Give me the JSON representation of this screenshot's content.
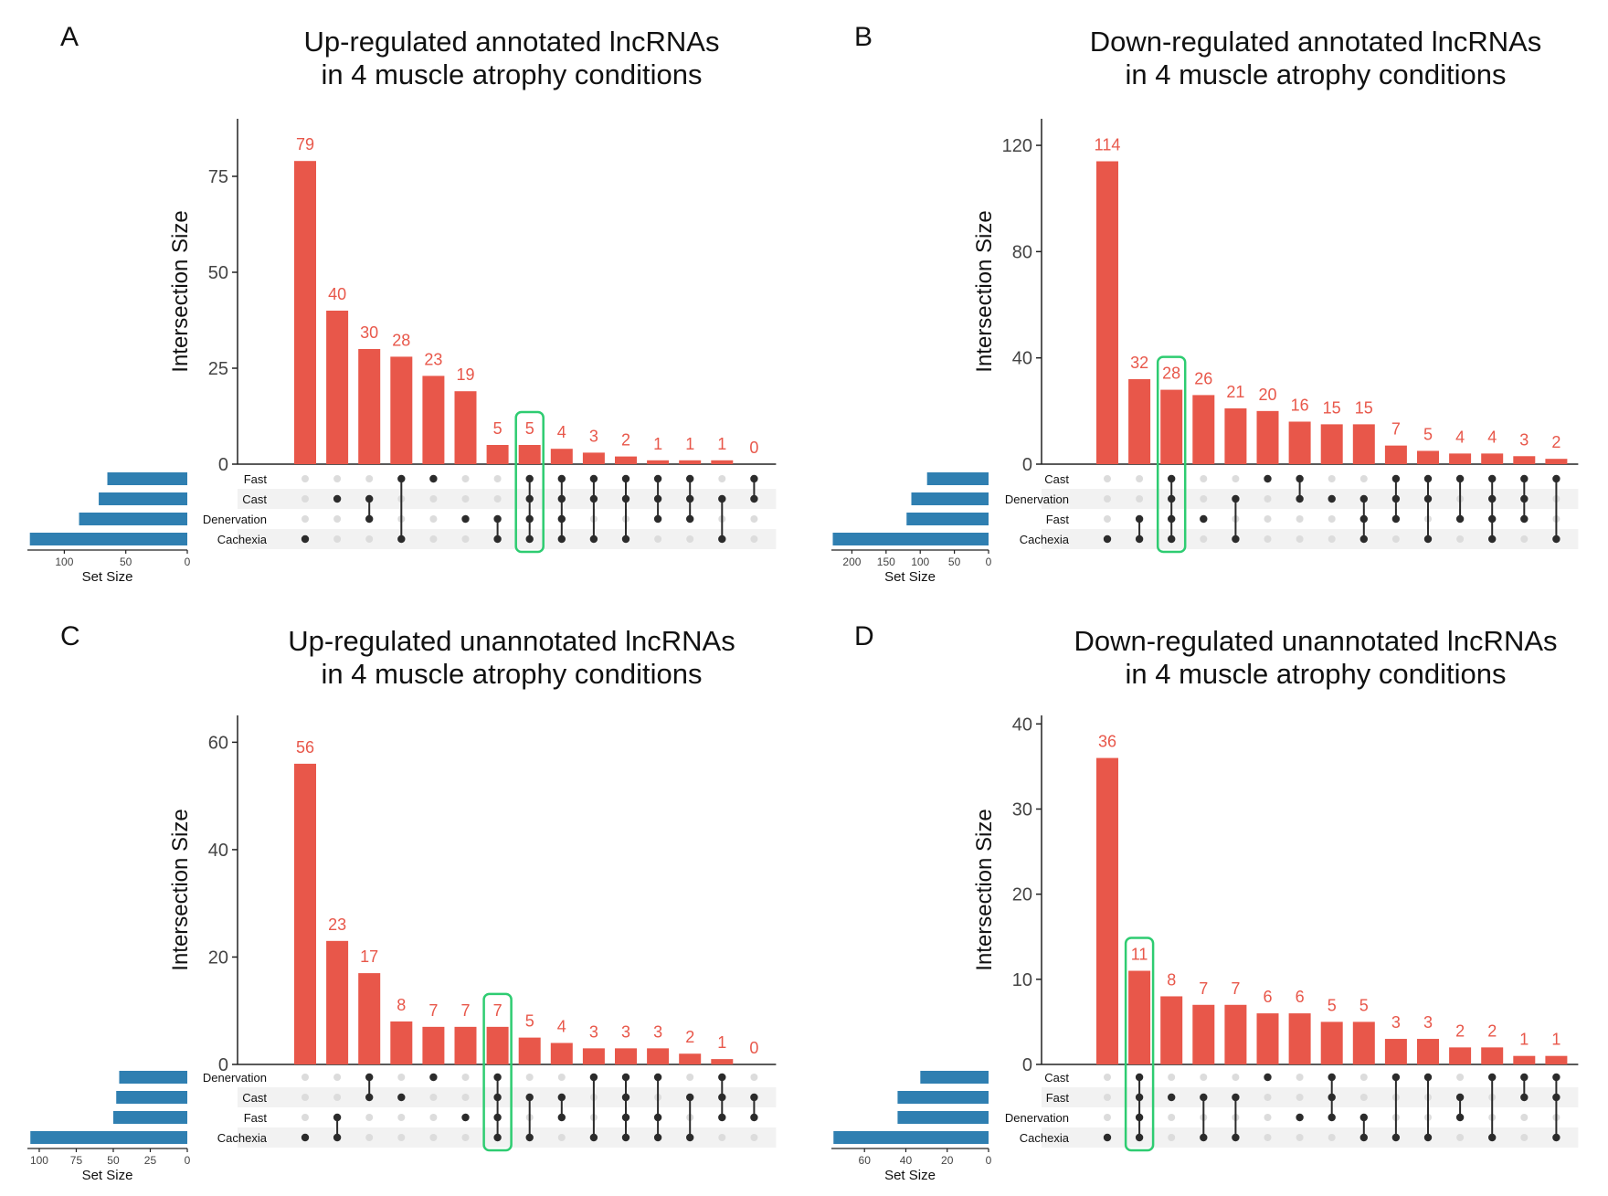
{
  "colors": {
    "bar": "#e8574a",
    "set_bar": "#2f7fb1",
    "highlight": "#2ecc71",
    "dot_on": "#2b2b2b",
    "dot_off": "#dcdcdc",
    "stripe": "#f2f2f2",
    "label": "#e8574a"
  },
  "chart_data": [
    {
      "panel": "A",
      "type": "bar",
      "title_lines": [
        "Up-regulated annotated lncRNAs",
        "in 4 muscle atrophy conditions"
      ],
      "ylabel": "Intersection Size",
      "ylim": [
        0,
        90
      ],
      "yticks": [
        0,
        25,
        50,
        75
      ],
      "values": [
        79,
        40,
        30,
        28,
        23,
        19,
        5,
        5,
        4,
        3,
        2,
        1,
        1,
        1,
        0
      ],
      "sets": [
        "Fast",
        "Cast",
        "Denervation",
        "Cachexia"
      ],
      "set_sizes": [
        65,
        72,
        88,
        128
      ],
      "set_size_max": 130,
      "set_ticks": [
        100,
        50,
        0
      ],
      "set_xlabel": "Set Size",
      "membership": [
        [
          3
        ],
        [
          1
        ],
        [
          1,
          2
        ],
        [
          0,
          3
        ],
        [
          0
        ],
        [
          2
        ],
        [
          2,
          3
        ],
        [
          0,
          1,
          2,
          3
        ],
        [
          0,
          1,
          2,
          3
        ],
        [
          0,
          1,
          3
        ],
        [
          0,
          1,
          3
        ],
        [
          0,
          1,
          2
        ],
        [
          0,
          1,
          2
        ],
        [
          1,
          3
        ],
        [
          0,
          1
        ]
      ],
      "highlight": 7
    },
    {
      "panel": "B",
      "type": "bar",
      "title_lines": [
        "Down-regulated annotated lncRNAs",
        "in 4 muscle atrophy conditions"
      ],
      "ylabel": "Intersection Size",
      "ylim": [
        0,
        130
      ],
      "yticks": [
        0,
        40,
        80,
        120
      ],
      "values": [
        114,
        32,
        28,
        26,
        21,
        20,
        16,
        15,
        15,
        7,
        5,
        4,
        4,
        3,
        2
      ],
      "sets": [
        "Cast",
        "Denervation",
        "Fast",
        "Cachexia"
      ],
      "set_sizes": [
        90,
        113,
        120,
        228
      ],
      "set_size_max": 230,
      "set_ticks": [
        200,
        150,
        100,
        50,
        0
      ],
      "set_xlabel": "Set Size",
      "membership": [
        [
          3
        ],
        [
          2,
          3
        ],
        [
          0,
          1,
          2,
          3
        ],
        [
          2
        ],
        [
          1,
          3
        ],
        [
          0
        ],
        [
          0,
          1
        ],
        [
          1
        ],
        [
          1,
          2,
          3
        ],
        [
          0,
          1,
          2
        ],
        [
          0,
          1,
          3
        ],
        [
          0,
          2
        ],
        [
          0,
          1,
          2,
          3
        ],
        [
          0,
          1,
          2
        ],
        [
          0,
          3
        ]
      ],
      "highlight": 2
    },
    {
      "panel": "C",
      "type": "bar",
      "title_lines": [
        "Up-regulated unannotated lncRNAs",
        "in 4 muscle atrophy conditions"
      ],
      "ylabel": "Intersection Size",
      "ylim": [
        0,
        65
      ],
      "yticks": [
        0,
        20,
        40,
        60
      ],
      "values": [
        56,
        23,
        17,
        8,
        7,
        7,
        7,
        5,
        4,
        3,
        3,
        3,
        2,
        1,
        0
      ],
      "sets": [
        "Denervation",
        "Cast",
        "Fast",
        "Cachexia"
      ],
      "set_sizes": [
        46,
        48,
        50,
        106
      ],
      "set_size_max": 108,
      "set_ticks": [
        100,
        75,
        50,
        25,
        0
      ],
      "set_xlabel": "Set Size",
      "membership": [
        [
          3
        ],
        [
          2,
          3
        ],
        [
          0,
          1
        ],
        [
          1
        ],
        [
          0
        ],
        [
          2
        ],
        [
          0,
          1,
          2,
          3
        ],
        [
          1,
          3
        ],
        [
          1,
          2
        ],
        [
          0,
          3
        ],
        [
          0,
          1,
          2,
          3
        ],
        [
          0,
          2,
          3
        ],
        [
          1,
          3
        ],
        [
          0,
          1,
          2
        ],
        [
          1,
          2
        ]
      ],
      "highlight": 6
    },
    {
      "panel": "D",
      "type": "bar",
      "title_lines": [
        "Down-regulated unannotated lncRNAs",
        "in 4 muscle atrophy conditions"
      ],
      "ylabel": "Intersection Size",
      "ylim": [
        0,
        41
      ],
      "yticks": [
        0,
        10,
        20,
        30,
        40
      ],
      "values": [
        36,
        11,
        8,
        7,
        7,
        6,
        6,
        5,
        5,
        3,
        3,
        2,
        2,
        1,
        1
      ],
      "sets": [
        "Cast",
        "Fast",
        "Denervation",
        "Cachexia"
      ],
      "set_sizes": [
        33,
        44,
        44,
        75
      ],
      "set_size_max": 76,
      "set_ticks": [
        60,
        40,
        20,
        0
      ],
      "set_xlabel": "Set Size",
      "membership": [
        [
          3
        ],
        [
          0,
          1,
          2,
          3
        ],
        [
          1
        ],
        [
          1,
          3
        ],
        [
          1,
          3
        ],
        [
          0
        ],
        [
          2
        ],
        [
          0,
          1,
          2
        ],
        [
          2,
          3
        ],
        [
          0,
          3
        ],
        [
          0,
          3
        ],
        [
          1,
          2
        ],
        [
          0,
          3
        ],
        [
          0,
          1
        ],
        [
          0,
          1,
          3
        ]
      ],
      "highlight": 1
    }
  ]
}
